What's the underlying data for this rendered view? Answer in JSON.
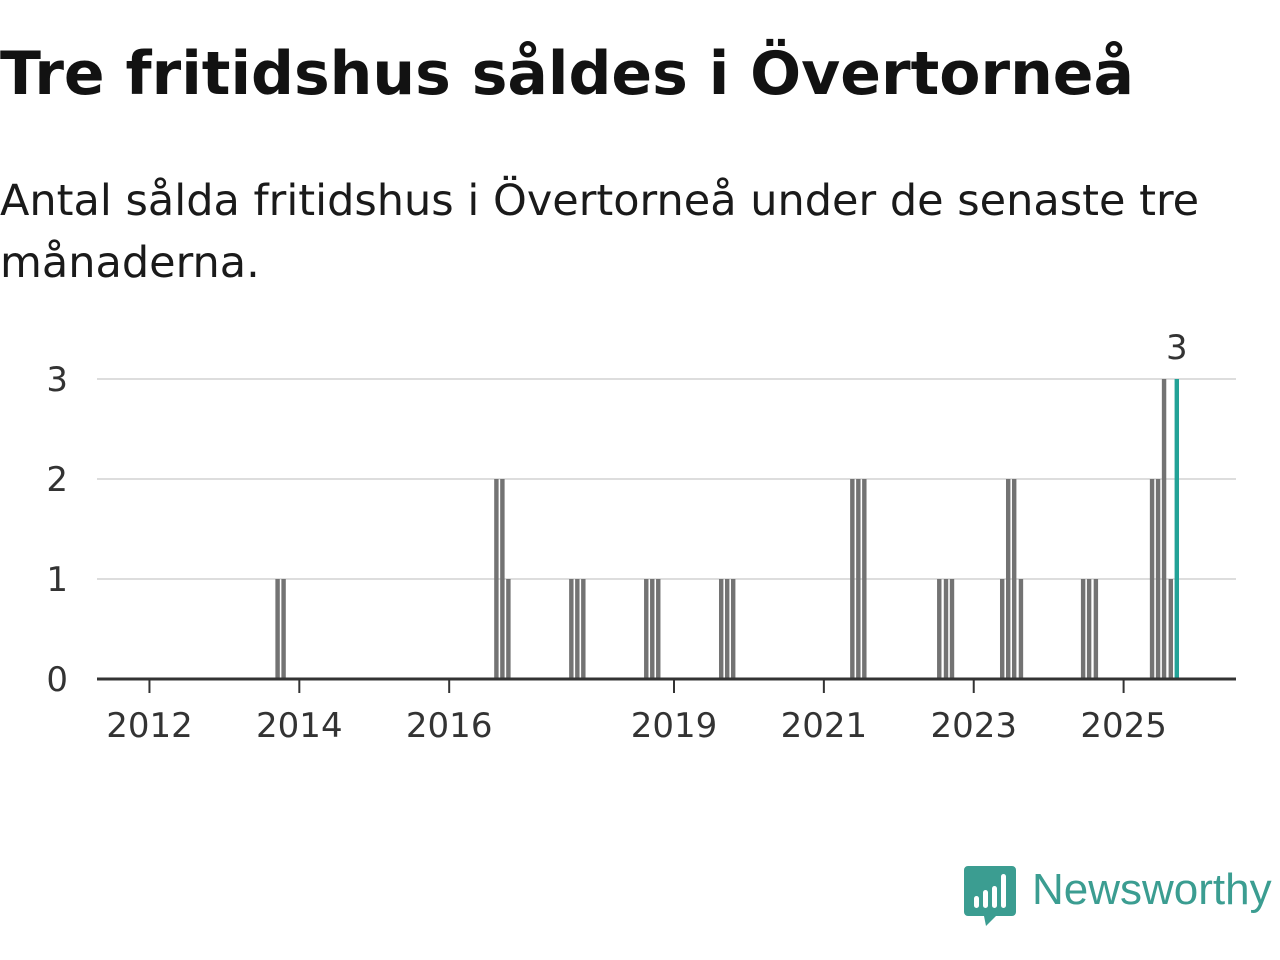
{
  "title": "Tre fritidshus såldes i Övertorneå",
  "subtitle": "Antal sålda fritidshus i Övertorneå under de senaste tre månaderna.",
  "brand": {
    "name": "Newsworthy",
    "icon": "newsworthy-logo-icon",
    "color": "#3b9d91"
  },
  "colors": {
    "bar": "#737373",
    "highlight": "#22a297",
    "grid": "#dddddd",
    "axis": "#333333"
  },
  "chart_data": {
    "type": "bar",
    "title": "Tre fritidshus såldes i Övertorneå",
    "xlabel": "",
    "ylabel": "",
    "ylim": [
      0,
      3
    ],
    "yticks": [
      "0",
      "1",
      "2",
      "3"
    ],
    "xlim": [
      2011.3,
      2026.5
    ],
    "xticks": [
      {
        "value": 2012,
        "label": "2012"
      },
      {
        "value": 2014,
        "label": "2014"
      },
      {
        "value": 2016,
        "label": "2016"
      },
      {
        "value": 2019,
        "label": "2019"
      },
      {
        "value": 2021,
        "label": "2021"
      },
      {
        "value": 2023,
        "label": "2023"
      },
      {
        "value": 2025,
        "label": "2025"
      }
    ],
    "bar_width_years": 0.083,
    "series": [
      {
        "name": "Sålda fritidshus",
        "points": [
          {
            "t": 2013.71,
            "v": 1
          },
          {
            "t": 2013.79,
            "v": 1
          },
          {
            "t": 2016.63,
            "v": 2
          },
          {
            "t": 2016.71,
            "v": 2
          },
          {
            "t": 2016.79,
            "v": 1
          },
          {
            "t": 2017.63,
            "v": 1
          },
          {
            "t": 2017.71,
            "v": 1
          },
          {
            "t": 2017.79,
            "v": 1
          },
          {
            "t": 2018.63,
            "v": 1
          },
          {
            "t": 2018.71,
            "v": 1
          },
          {
            "t": 2018.79,
            "v": 1
          },
          {
            "t": 2019.63,
            "v": 1
          },
          {
            "t": 2019.71,
            "v": 1
          },
          {
            "t": 2019.79,
            "v": 1
          },
          {
            "t": 2021.38,
            "v": 2
          },
          {
            "t": 2021.46,
            "v": 2
          },
          {
            "t": 2021.54,
            "v": 2
          },
          {
            "t": 2022.54,
            "v": 1
          },
          {
            "t": 2022.63,
            "v": 1
          },
          {
            "t": 2022.71,
            "v": 1
          },
          {
            "t": 2023.38,
            "v": 1
          },
          {
            "t": 2023.46,
            "v": 2
          },
          {
            "t": 2023.54,
            "v": 2
          },
          {
            "t": 2023.63,
            "v": 1
          },
          {
            "t": 2024.46,
            "v": 1
          },
          {
            "t": 2024.54,
            "v": 1
          },
          {
            "t": 2024.63,
            "v": 1
          },
          {
            "t": 2025.38,
            "v": 2
          },
          {
            "t": 2025.46,
            "v": 2
          },
          {
            "t": 2025.54,
            "v": 3
          },
          {
            "t": 2025.63,
            "v": 1
          },
          {
            "t": 2025.71,
            "v": 3,
            "highlight": true,
            "label": "3"
          }
        ]
      }
    ]
  }
}
